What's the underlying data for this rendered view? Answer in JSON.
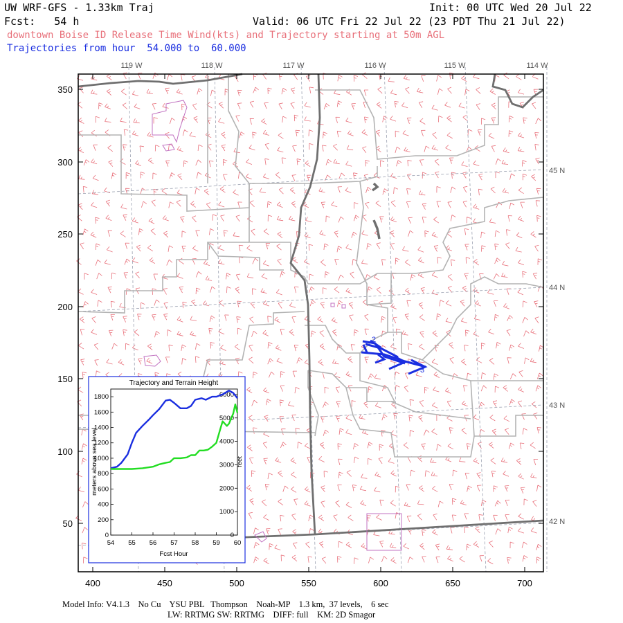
{
  "header": {
    "title": "UW WRF-GFS - 1.33km Traj",
    "init": "Init: 00 UTC Wed 20 Jul 22",
    "fcst": "Fcst:   54 h",
    "valid": "Valid: 06 UTC Fri 22 Jul 22 (23 PDT Thu 21 Jul 22)",
    "release": "downtown Boise ID Release Time Wind(kts) and Trajectory starting at 50m AGL",
    "trajectories": "Trajectories from hour  54.000 to  60.000"
  },
  "map": {
    "x_ticks": [
      "400",
      "450",
      "500",
      "550",
      "600",
      "650",
      "700"
    ],
    "y_ticks": [
      "50",
      "100",
      "150",
      "200",
      "250",
      "300",
      "350"
    ],
    "lon_labels": [
      "119 W",
      "118 W",
      "117 W",
      "116 W",
      "115 W",
      "114 W"
    ],
    "lat_labels": [
      "45 N",
      "44 N",
      "43 N",
      "42 N"
    ],
    "trajectory_markers": [
      "2",
      "3"
    ],
    "colors": {
      "wind_barbs": "#e8707a",
      "trajectory": "#1a2ee0",
      "borders": "#6f6f6f",
      "counties": "#b0b0b0",
      "urban": "#c070c0"
    }
  },
  "inset": {
    "title": "Trajectory and Terrain Height",
    "ylabel_left": "meters above sea level",
    "ylabel_right": "feet",
    "xlabel": "Fcst Hour",
    "x_ticks": [
      "54",
      "55",
      "56",
      "57",
      "58",
      "59",
      "60"
    ],
    "y_left_ticks": [
      "0",
      "200",
      "400",
      "600",
      "800",
      "1000",
      "1200",
      "1400",
      "1600",
      "1800"
    ],
    "y_right_ticks": [
      "0",
      "1000",
      "2000",
      "3000",
      "4000",
      "5000",
      "6000"
    ]
  },
  "chart_data": {
    "type": "line",
    "title": "Trajectory and Terrain Height",
    "xlabel": "Fcst Hour",
    "ylabel": "meters above sea level",
    "xlim": [
      54,
      60
    ],
    "ylim": [
      0,
      1900
    ],
    "series": [
      {
        "color": "#1a2ee0",
        "x": [
          54.0,
          54.3,
          54.5,
          54.8,
          55.0,
          55.2,
          55.5,
          55.8,
          56.0,
          56.3,
          56.6,
          56.8,
          57.0,
          57.3,
          57.6,
          57.8,
          58.0,
          58.3,
          58.5,
          58.8,
          59.0,
          59.3,
          59.6,
          59.8,
          60.0
        ],
        "y": [
          870,
          890,
          940,
          1050,
          1200,
          1330,
          1420,
          1500,
          1560,
          1640,
          1750,
          1760,
          1720,
          1650,
          1650,
          1680,
          1760,
          1780,
          1760,
          1800,
          1800,
          1830,
          1880,
          1850,
          1780
        ]
      },
      {
        "color": "#22dd22",
        "x": [
          54.0,
          54.5,
          55.0,
          55.5,
          56.0,
          56.3,
          56.6,
          56.8,
          57.0,
          57.3,
          57.6,
          57.8,
          58.0,
          58.2,
          58.4,
          58.6,
          58.8,
          59.0,
          59.2,
          59.3,
          59.5,
          59.6,
          59.8,
          59.9,
          60.0
        ],
        "y": [
          860,
          860,
          860,
          870,
          890,
          920,
          940,
          950,
          1000,
          1000,
          1010,
          1040,
          1040,
          1100,
          1100,
          1110,
          1150,
          1200,
          1390,
          1480,
          1420,
          1450,
          1580,
          1700,
          1590
        ]
      }
    ]
  }
}
